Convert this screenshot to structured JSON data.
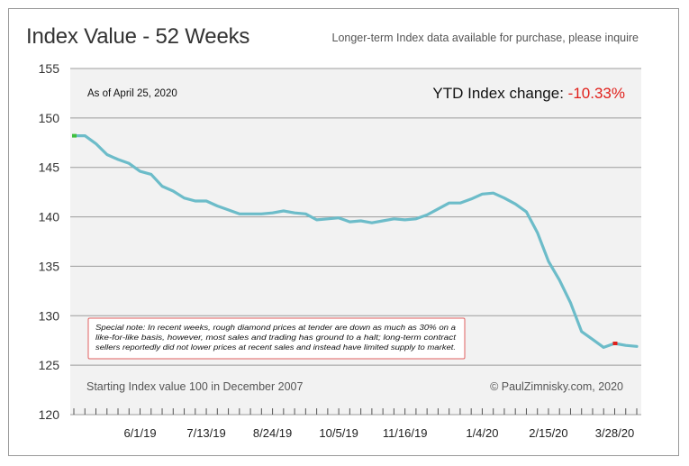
{
  "title": "Index Value - 52 Weeks",
  "subtitle": "Longer-term Index data available for purchase, please inquire",
  "as_of": "As of April 25, 2020",
  "ytd_label": "YTD Index change: ",
  "ytd_value": "-10.33%",
  "note": {
    "lines": [
      "Special note: In recent weeks, rough diamond prices at tender are down as much as 30% on a",
      "like-for-like basis, however, most sales and trading has ground to a halt; long-term contract",
      "sellers reportedly did not lower prices at recent sales and instead have limited supply to market."
    ]
  },
  "footer_left": "Starting Index value 100 in December 2007",
  "footer_right": "© PaulZimnisky.com, 2020",
  "colors": {
    "line": "#6cbcc9",
    "plot_bg": "#f2f2f2",
    "grid": "#9c9c9c",
    "negative": "#e0201b",
    "start_marker": "#3fbf3f",
    "end_marker": "#e0201b",
    "note_border": "#e06060"
  },
  "chart_data": {
    "type": "line",
    "title": "Index Value - 52 Weeks",
    "xlabel": "",
    "ylabel": "",
    "ylim": [
      120,
      155
    ],
    "yticks": [
      120,
      125,
      130,
      135,
      140,
      145,
      150,
      155
    ],
    "grid": true,
    "xtick_labels": [
      {
        "label": "6/1/19",
        "week": 6
      },
      {
        "label": "7/13/19",
        "week": 12
      },
      {
        "label": "8/24/19",
        "week": 18
      },
      {
        "label": "10/5/19",
        "week": 24
      },
      {
        "label": "11/16/19",
        "week": 30
      },
      {
        "label": "1/4/20",
        "week": 37
      },
      {
        "label": "2/15/20",
        "week": 43
      },
      {
        "label": "3/28/20",
        "week": 49
      }
    ],
    "series": [
      {
        "values": [
          148.2,
          148.2,
          147.4,
          146.3,
          145.8,
          145.4,
          144.6,
          144.3,
          143.1,
          142.6,
          141.9,
          141.6,
          141.6,
          141.1,
          140.7,
          140.3,
          140.3,
          140.3,
          140.4,
          140.6,
          140.4,
          140.3,
          139.7,
          139.8,
          139.9,
          139.5,
          139.6,
          139.4,
          139.6,
          139.8,
          139.7,
          139.8,
          140.2,
          140.8,
          141.4,
          141.4,
          141.8,
          142.3,
          142.4,
          141.9,
          141.3,
          140.5,
          138.4,
          135.5,
          133.6,
          131.3,
          128.4,
          127.6,
          126.8,
          127.2,
          127.0,
          126.9
        ]
      }
    ]
  }
}
